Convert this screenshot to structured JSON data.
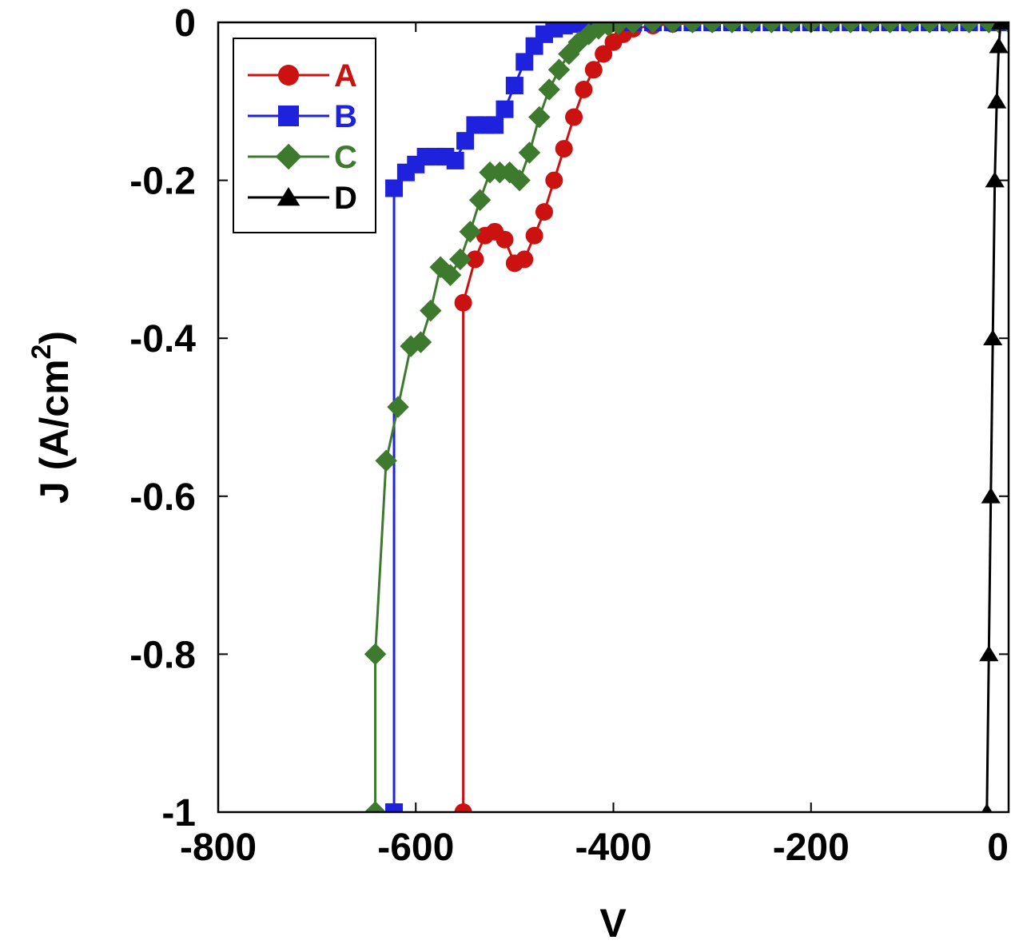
{
  "chart_data": {
    "type": "line",
    "title": "",
    "xlabel": "V",
    "ylabel": "J (A/cm",
    "ylabel_sup": "2",
    "ylabel_close": ")",
    "xlim": [
      -800,
      0
    ],
    "ylim": [
      -1,
      0
    ],
    "xticks": [
      -800,
      -600,
      -400,
      -200,
      0
    ],
    "xtick_labels": [
      "-800",
      "-600",
      "-400",
      "-200",
      "0"
    ],
    "yticks": [
      0,
      -0.2,
      -0.4,
      -0.6,
      -0.8,
      -1
    ],
    "ytick_labels": [
      "0",
      "-0.2",
      "-0.4",
      "-0.6",
      "-0.8",
      "-1"
    ],
    "grid": false,
    "legend_position": "top-left",
    "series": [
      {
        "name": "A",
        "color": "#cc1111",
        "marker": "circle",
        "x": [
          -552,
          -552,
          -540,
          -530,
          -520,
          -510,
          -500,
          -490,
          -480,
          -470,
          -460,
          -450,
          -440,
          -430,
          -420,
          -410,
          -400,
          -390,
          -380,
          -360,
          -340,
          -320,
          -300,
          -280,
          -260,
          -240,
          -220,
          -200,
          -180,
          -160,
          -140,
          -120,
          -100,
          -80,
          -60,
          -40,
          -20,
          -10,
          0
        ],
        "y": [
          -1,
          -0.355,
          -0.3,
          -0.27,
          -0.265,
          -0.275,
          -0.305,
          -0.3,
          -0.27,
          -0.24,
          -0.2,
          -0.16,
          -0.12,
          -0.085,
          -0.06,
          -0.04,
          -0.025,
          -0.015,
          -0.008,
          -0.004,
          -0.002,
          -0.001,
          -0.001,
          0,
          0,
          0,
          0,
          0,
          0,
          0,
          0,
          0,
          0,
          0,
          0,
          0,
          0,
          0,
          0
        ]
      },
      {
        "name": "B",
        "color": "#1f22dd",
        "marker": "square",
        "x": [
          -622,
          -622,
          -610,
          -600,
          -590,
          -580,
          -570,
          -560,
          -550,
          -540,
          -530,
          -520,
          -510,
          -500,
          -490,
          -480,
          -470,
          -460,
          -450,
          -440,
          -430,
          -420,
          -410,
          -400,
          -380,
          -360,
          -340,
          -320,
          -300,
          -280,
          -260,
          -240,
          -220,
          -200,
          -180,
          -160,
          -140,
          -120,
          -100,
          -80,
          -60,
          -40,
          -20,
          -10,
          0
        ],
        "y": [
          -1,
          -0.21,
          -0.19,
          -0.18,
          -0.17,
          -0.17,
          -0.17,
          -0.175,
          -0.15,
          -0.13,
          -0.13,
          -0.13,
          -0.11,
          -0.08,
          -0.05,
          -0.03,
          -0.015,
          -0.008,
          -0.004,
          -0.002,
          -0.001,
          0,
          0,
          0,
          0,
          0,
          0,
          0,
          0,
          0,
          0,
          0,
          0,
          0,
          0,
          0,
          0,
          0,
          0,
          0,
          0,
          0,
          0,
          0,
          0
        ]
      },
      {
        "name": "C",
        "color": "#3d7a2e",
        "marker": "diamond",
        "x": [
          -641,
          -641,
          -630,
          -618,
          -605,
          -595,
          -585,
          -575,
          -565,
          -555,
          -545,
          -535,
          -525,
          -515,
          -505,
          -495,
          -485,
          -475,
          -465,
          -455,
          -445,
          -435,
          -425,
          -415,
          -405,
          -395,
          -380,
          -360,
          -340,
          -320,
          -300,
          -280,
          -260,
          -240,
          -220,
          -200,
          -180,
          -160,
          -140,
          -120,
          -100,
          -80,
          -60,
          -40,
          -20,
          -10,
          0
        ],
        "y": [
          -1,
          -0.8,
          -0.555,
          -0.487,
          -0.41,
          -0.405,
          -0.365,
          -0.31,
          -0.32,
          -0.3,
          -0.265,
          -0.225,
          -0.19,
          -0.19,
          -0.19,
          -0.2,
          -0.165,
          -0.12,
          -0.085,
          -0.06,
          -0.04,
          -0.025,
          -0.015,
          -0.008,
          -0.004,
          -0.002,
          -0.001,
          0,
          0,
          0,
          0,
          0,
          0,
          0,
          0,
          0,
          0,
          0,
          0,
          0,
          0,
          0,
          0,
          0,
          0,
          0,
          0
        ]
      },
      {
        "name": "D",
        "color": "#000000",
        "marker": "triangle",
        "x": [
          -22,
          -20,
          -18,
          -16,
          -14,
          -12,
          -10,
          -8,
          -6,
          0
        ],
        "y": [
          -1,
          -0.8,
          -0.6,
          -0.4,
          -0.2,
          -0.1,
          -0.03,
          0,
          0,
          0
        ]
      }
    ]
  }
}
